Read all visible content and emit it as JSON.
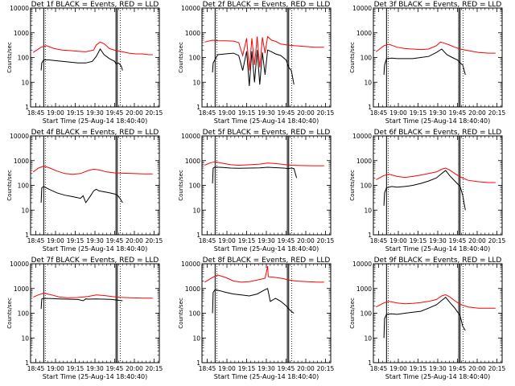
{
  "figure": {
    "background": "#ffffff",
    "colors": {
      "events": "#000000",
      "lld": "#ff0000",
      "frame": "#000000"
    }
  },
  "chart_data": [
    {
      "type": "line",
      "title": "Det 1f BLACK = Events, RED = LLD",
      "xlabel": "Start Time (25-Aug-14 18:40:40)",
      "ylabel": "Counts/sec",
      "yscale": "log",
      "ylim": [
        1,
        10000
      ],
      "yticks": [
        "1",
        "10",
        "100",
        "1000",
        "10000"
      ],
      "xticks": [
        "18:45",
        "19:00",
        "19:15",
        "19:30",
        "19:45",
        "20:00",
        "20:15"
      ],
      "xlim": [
        0,
        98
      ],
      "markers": {
        "solid": [
          10,
          65,
          66
        ],
        "dotted": [
          10,
          67
        ]
      },
      "series": [
        {
          "color": "#ff0000",
          "x": [
            2,
            8,
            12,
            18,
            24,
            30,
            36,
            42,
            48,
            50,
            53,
            56,
            60,
            65,
            70,
            75,
            80,
            85,
            90,
            93
          ],
          "values": [
            160,
            260,
            300,
            230,
            200,
            190,
            180,
            170,
            200,
            320,
            420,
            360,
            230,
            190,
            170,
            150,
            140,
            140,
            130,
            130
          ]
        },
        {
          "color": "#000000",
          "x": [
            8,
            8.5,
            10,
            14,
            18,
            24,
            30,
            36,
            42,
            47,
            50,
            53,
            56,
            60,
            64,
            65,
            67,
            69,
            70
          ],
          "values": [
            30,
            60,
            80,
            80,
            75,
            70,
            65,
            60,
            60,
            70,
            110,
            220,
            130,
            90,
            70,
            55,
            60,
            45,
            30
          ]
        }
      ]
    },
    {
      "type": "line",
      "title": "Det 2f BLACK = Events, RED = LLD",
      "xlabel": "Start Time (25-Aug-14 18:40:40)",
      "ylabel": "Counts/sec",
      "yscale": "log",
      "ylim": [
        1,
        10000
      ],
      "yticks": [
        "1",
        "10",
        "100",
        "1000",
        "10000"
      ],
      "xticks": [
        "18:45",
        "19:00",
        "19:15",
        "19:30",
        "19:45",
        "20:00",
        "20:15"
      ],
      "xlim": [
        0,
        98
      ],
      "markers": {
        "solid": [
          10,
          65,
          66
        ],
        "dotted": [
          10,
          67
        ]
      },
      "series": [
        {
          "color": "#ff0000",
          "x": [
            2,
            8,
            12,
            18,
            24,
            28,
            31,
            34,
            36,
            38,
            40,
            42,
            44,
            46,
            48,
            50,
            53,
            56,
            60,
            65,
            70,
            78,
            86,
            93
          ],
          "values": [
            420,
            500,
            480,
            470,
            460,
            400,
            120,
            600,
            30,
            600,
            50,
            700,
            40,
            650,
            150,
            700,
            500,
            450,
            350,
            320,
            300,
            280,
            260,
            260
          ]
        },
        {
          "color": "#000000",
          "x": [
            8,
            8.5,
            12,
            18,
            24,
            28,
            31,
            34,
            36,
            38,
            40,
            42,
            44,
            46,
            48,
            50,
            53,
            56,
            60,
            64,
            66,
            68,
            70
          ],
          "values": [
            25,
            60,
            130,
            140,
            150,
            120,
            30,
            180,
            7,
            180,
            10,
            200,
            8,
            160,
            20,
            200,
            170,
            140,
            120,
            80,
            40,
            30,
            8
          ]
        }
      ]
    },
    {
      "type": "line",
      "title": "Det 3f BLACK = Events, RED = LLD",
      "xlabel": "Start Time (25-Aug-14 18:40:40)",
      "ylabel": "Counts/sec",
      "yscale": "log",
      "ylim": [
        1,
        10000
      ],
      "yticks": [
        "1",
        "10",
        "100",
        "1000",
        "10000"
      ],
      "xticks": [
        "18:45",
        "19:00",
        "19:15",
        "19:30",
        "19:45",
        "20:00",
        "20:15"
      ],
      "xlim": [
        0,
        98
      ],
      "markers": {
        "solid": [
          10,
          65,
          66
        ],
        "dotted": [
          10,
          67
        ]
      },
      "series": [
        {
          "color": "#ff0000",
          "x": [
            2,
            8,
            12,
            18,
            24,
            30,
            36,
            42,
            48,
            51,
            54,
            58,
            62,
            66,
            72,
            80,
            88,
            93
          ],
          "values": [
            170,
            300,
            340,
            260,
            230,
            220,
            210,
            220,
            300,
            420,
            380,
            320,
            260,
            220,
            190,
            160,
            150,
            150
          ]
        },
        {
          "color": "#000000",
          "x": [
            8,
            8.5,
            10,
            14,
            18,
            24,
            30,
            36,
            42,
            48,
            52,
            56,
            60,
            64,
            66,
            68,
            70
          ],
          "values": [
            20,
            50,
            90,
            95,
            90,
            90,
            90,
            100,
            110,
            160,
            220,
            130,
            100,
            80,
            60,
            50,
            20
          ]
        }
      ]
    },
    {
      "type": "line",
      "title": "Det 4f BLACK = Events, RED = LLD",
      "xlabel": "Start Time (25-Aug-14 18:40:40)",
      "ylabel": "Counts/sec",
      "yscale": "log",
      "ylim": [
        1,
        10000
      ],
      "yticks": [
        "1",
        "10",
        "100",
        "1000",
        "10000"
      ],
      "xticks": [
        "18:45",
        "19:00",
        "19:15",
        "19:30",
        "19:45",
        "20:00",
        "20:15"
      ],
      "xlim": [
        0,
        98
      ],
      "markers": {
        "solid": [
          10,
          65,
          66
        ],
        "dotted": [
          10,
          67
        ]
      },
      "series": [
        {
          "color": "#ff0000",
          "x": [
            2,
            6,
            10,
            14,
            20,
            26,
            32,
            38,
            44,
            48,
            52,
            58,
            64,
            70,
            78,
            86,
            93
          ],
          "values": [
            350,
            500,
            600,
            520,
            380,
            300,
            280,
            300,
            400,
            450,
            420,
            350,
            320,
            310,
            300,
            290,
            290
          ]
        },
        {
          "color": "#000000",
          "x": [
            8,
            8.5,
            10,
            14,
            20,
            26,
            32,
            38,
            40,
            42,
            46,
            48,
            50,
            52,
            56,
            60,
            64,
            66,
            68,
            70
          ],
          "values": [
            20,
            80,
            90,
            70,
            50,
            40,
            35,
            30,
            38,
            20,
            40,
            60,
            70,
            60,
            55,
            50,
            45,
            40,
            30,
            20
          ]
        }
      ]
    },
    {
      "type": "line",
      "title": "Det 5f BLACK = Events, RED = LLD",
      "xlabel": "Start Time (25-Aug-14 18:40:40)",
      "ylabel": "Counts/sec",
      "yscale": "log",
      "ylim": [
        1,
        10000
      ],
      "yticks": [
        "1",
        "10",
        "100",
        "1000",
        "10000"
      ],
      "xticks": [
        "18:45",
        "19:00",
        "19:15",
        "19:30",
        "19:45",
        "20:00",
        "20:15"
      ],
      "xlim": [
        0,
        98
      ],
      "markers": {
        "solid": [
          10,
          65,
          66
        ],
        "dotted": [
          10,
          67
        ]
      },
      "series": [
        {
          "color": "#ff0000",
          "x": [
            2,
            6,
            10,
            16,
            22,
            28,
            36,
            44,
            50,
            56,
            62,
            68,
            76,
            86,
            93
          ],
          "values": [
            650,
            800,
            900,
            780,
            680,
            650,
            680,
            720,
            800,
            760,
            700,
            650,
            630,
            620,
            620
          ]
        },
        {
          "color": "#000000",
          "x": [
            8,
            8.5,
            10,
            16,
            22,
            28,
            36,
            44,
            50,
            56,
            62,
            66,
            68,
            70,
            72
          ],
          "values": [
            120,
            500,
            550,
            530,
            500,
            490,
            500,
            510,
            540,
            520,
            500,
            480,
            500,
            480,
            200
          ]
        }
      ]
    },
    {
      "type": "line",
      "title": "Det 6f BLACK = Events, RED = LLD",
      "xlabel": "Start Time (25-Aug-14 18:40:40)",
      "ylabel": "Counts/sec",
      "yscale": "log",
      "ylim": [
        1,
        10000
      ],
      "yticks": [
        "1",
        "10",
        "100",
        "1000",
        "10000"
      ],
      "xticks": [
        "18:45",
        "19:00",
        "19:15",
        "19:30",
        "19:45",
        "20:00",
        "20:15"
      ],
      "xlim": [
        0,
        98
      ],
      "markers": {
        "solid": [
          10,
          65,
          66
        ],
        "dotted": [
          10,
          67
        ]
      },
      "series": [
        {
          "color": "#ff0000",
          "x": [
            2,
            8,
            12,
            18,
            24,
            30,
            36,
            42,
            48,
            52,
            55,
            58,
            62,
            66,
            72,
            80,
            88,
            93
          ],
          "values": [
            170,
            250,
            280,
            230,
            210,
            230,
            260,
            300,
            350,
            450,
            500,
            420,
            300,
            220,
            160,
            140,
            130,
            130
          ]
        },
        {
          "color": "#000000",
          "x": [
            8,
            8.5,
            10,
            14,
            18,
            24,
            30,
            36,
            42,
            48,
            52,
            55,
            58,
            62,
            66,
            68,
            70
          ],
          "values": [
            15,
            50,
            80,
            90,
            85,
            90,
            100,
            120,
            150,
            200,
            300,
            400,
            250,
            150,
            90,
            40,
            10
          ]
        }
      ]
    },
    {
      "type": "line",
      "title": "Det 7f BLACK = Events, RED = LLD",
      "xlabel": "Start Time (25-Aug-14 18:40:40)",
      "ylabel": "Counts/sec",
      "yscale": "log",
      "ylim": [
        1,
        10000
      ],
      "yticks": [
        "1",
        "10",
        "100",
        "1000",
        "10000"
      ],
      "xticks": [
        "18:45",
        "19:00",
        "19:15",
        "19:30",
        "19:45",
        "20:00",
        "20:15"
      ],
      "xlim": [
        0,
        98
      ],
      "markers": {
        "solid": [
          10,
          65,
          66
        ],
        "dotted": [
          10,
          67
        ]
      },
      "series": [
        {
          "color": "#ff0000",
          "x": [
            2,
            6,
            10,
            16,
            22,
            28,
            36,
            44,
            50,
            56,
            62,
            68,
            76,
            86,
            93
          ],
          "values": [
            450,
            550,
            650,
            550,
            450,
            420,
            430,
            480,
            550,
            520,
            470,
            440,
            420,
            410,
            410
          ]
        },
        {
          "color": "#000000",
          "x": [
            8,
            8.5,
            10,
            16,
            22,
            28,
            36,
            40,
            42,
            44,
            50,
            56,
            62,
            66,
            68,
            70
          ],
          "values": [
            150,
            380,
            400,
            390,
            380,
            370,
            360,
            320,
            380,
            370,
            380,
            370,
            360,
            340,
            330,
            320
          ]
        }
      ]
    },
    {
      "type": "line",
      "title": "Det 8f BLACK = Events, RED = LLD",
      "xlabel": "Start Time (25-Aug-14 18:40:40)",
      "ylabel": "Counts/sec",
      "yscale": "log",
      "ylim": [
        1,
        10000
      ],
      "yticks": [
        "1",
        "10",
        "100",
        "1000",
        "10000"
      ],
      "xticks": [
        "18:45",
        "19:00",
        "19:15",
        "19:30",
        "19:45",
        "20:00",
        "20:15"
      ],
      "xlim": [
        0,
        98
      ],
      "markers": {
        "solid": [
          10,
          65,
          66
        ],
        "dotted": [
          10,
          67
        ]
      },
      "series": [
        {
          "color": "#ff0000",
          "x": [
            2,
            8,
            12,
            18,
            24,
            30,
            36,
            42,
            48,
            50,
            50.5,
            56,
            62,
            66,
            72,
            80,
            88,
            93
          ],
          "values": [
            1800,
            2800,
            3500,
            2800,
            2000,
            1800,
            1900,
            2200,
            2600,
            8000,
            3000,
            2800,
            2500,
            2200,
            2000,
            1900,
            1800,
            1800
          ]
        },
        {
          "color": "#000000",
          "x": [
            8,
            8.5,
            10,
            14,
            18,
            24,
            30,
            36,
            42,
            48,
            50,
            52,
            56,
            60,
            64,
            66,
            68,
            70
          ],
          "values": [
            100,
            700,
            900,
            800,
            700,
            600,
            550,
            500,
            600,
            900,
            1000,
            300,
            400,
            300,
            200,
            150,
            120,
            100
          ]
        }
      ]
    },
    {
      "type": "line",
      "title": "Det 9f BLACK = Events, RED = LLD",
      "xlabel": "Start Time (25-Aug-14 18:40:40)",
      "ylabel": "Counts/sec",
      "yscale": "log",
      "ylim": [
        1,
        10000
      ],
      "yticks": [
        "1",
        "10",
        "100",
        "1000",
        "10000"
      ],
      "xticks": [
        "18:45",
        "19:00",
        "19:15",
        "19:30",
        "19:45",
        "20:00",
        "20:15"
      ],
      "xlim": [
        0,
        98
      ],
      "markers": {
        "solid": [
          10,
          65,
          66
        ],
        "dotted": [
          10,
          67
        ]
      },
      "series": [
        {
          "color": "#ff0000",
          "x": [
            2,
            8,
            12,
            18,
            24,
            30,
            36,
            42,
            48,
            52,
            55,
            58,
            62,
            66,
            72,
            80,
            88,
            93
          ],
          "values": [
            180,
            260,
            300,
            260,
            240,
            250,
            270,
            300,
            360,
            500,
            560,
            460,
            320,
            230,
            180,
            160,
            160,
            160
          ]
        },
        {
          "color": "#000000",
          "x": [
            8,
            8.5,
            10,
            14,
            18,
            24,
            30,
            36,
            42,
            48,
            52,
            55,
            58,
            62,
            66,
            68,
            70
          ],
          "values": [
            10,
            60,
            90,
            95,
            90,
            100,
            110,
            120,
            160,
            220,
            330,
            440,
            280,
            160,
            80,
            30,
            20
          ]
        }
      ]
    }
  ]
}
